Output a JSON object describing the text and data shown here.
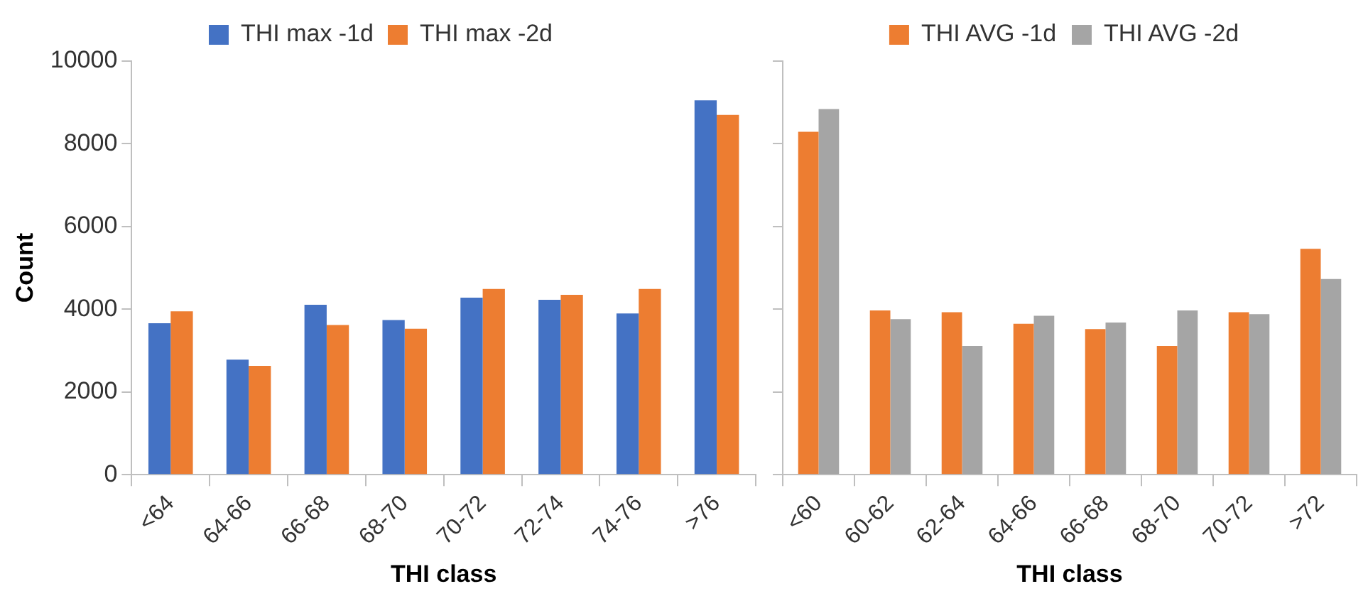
{
  "chart_data": [
    {
      "type": "bar",
      "xlabel": "THI class",
      "ylabel": "Count",
      "categories": [
        "<64",
        "64-66",
        "66-68",
        "68-70",
        "70-72",
        "72-74",
        "74-76",
        ">76"
      ],
      "series": [
        {
          "name": "THI max -1d",
          "color": "#4472c4",
          "values": [
            3660,
            2780,
            4110,
            3740,
            4280,
            4230,
            3900,
            9050
          ]
        },
        {
          "name": "THI max -2d",
          "color": "#ed7d31",
          "values": [
            3950,
            2630,
            3620,
            3530,
            4490,
            4350,
            4490,
            8700
          ]
        }
      ],
      "ylim": [
        0,
        10000
      ],
      "yticks": [
        0,
        2000,
        4000,
        6000,
        8000,
        10000
      ],
      "grid": false,
      "legend": "top"
    },
    {
      "type": "bar",
      "xlabel": "THI class",
      "categories": [
        "<60",
        "60-62",
        "62-64",
        "64-66",
        "66-68",
        "68-70",
        "70-72",
        ">72"
      ],
      "series": [
        {
          "name": "THI AVG -1d",
          "color": "#ed7d31",
          "values": [
            8290,
            3970,
            3930,
            3650,
            3520,
            3110,
            3930,
            5460
          ]
        },
        {
          "name": "THI AVG -2d",
          "color": "#a5a5a5",
          "values": [
            8840,
            3760,
            3110,
            3840,
            3680,
            3970,
            3880,
            4730
          ]
        }
      ],
      "ylim": [
        0,
        10000
      ],
      "yticks": [
        0,
        2000,
        4000,
        6000,
        8000,
        10000
      ],
      "grid": false,
      "legend": "top",
      "tick_labels": "x"
    }
  ]
}
